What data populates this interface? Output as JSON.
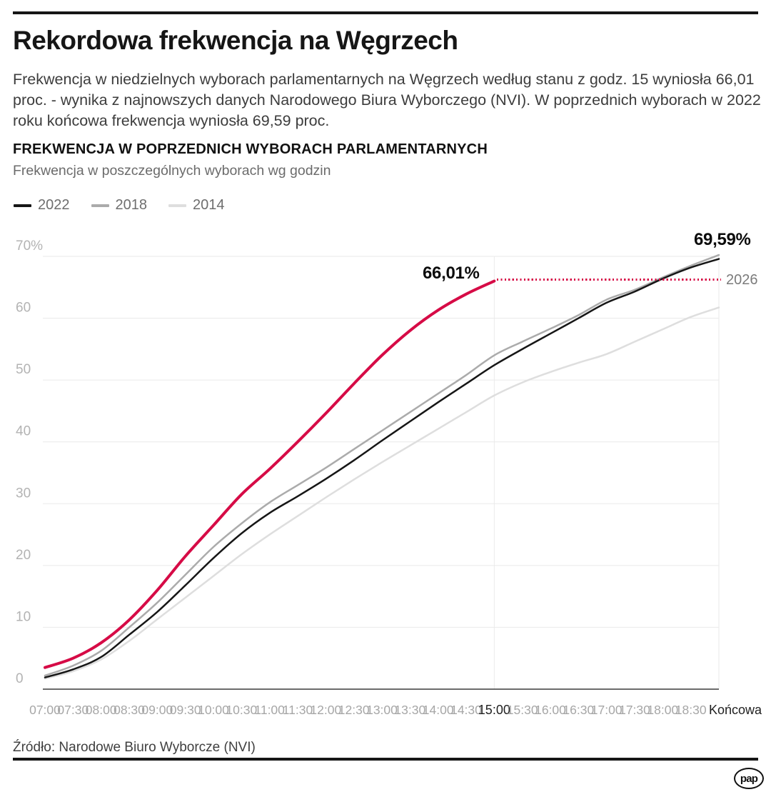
{
  "header": {
    "title": "Rekordowa frekwencja na Węgrzech",
    "lead": "Frekwencja w niedzielnych wyborach parlamentarnych na Węgrzech według stanu z godz. 15 wyniosła 66,01 proc. - wynika z najnowszych danych Narodowego Biura Wyborczego (NVI). W poprzednich wyborach w 2022 roku końcowa frekwencja wyniosła 69,59 proc."
  },
  "chart": {
    "heading": "FREKWENCJA W POPRZEDNICH WYBORACH PARLAMENTARNYCH",
    "subheading": "Frekwencja w poszczególnych wyborach wg godzin",
    "legend": [
      {
        "label": "2022",
        "color": "#161616"
      },
      {
        "label": "2018",
        "color": "#ababab"
      },
      {
        "label": "2014",
        "color": "#dedede"
      }
    ],
    "annotations": {
      "current_turnout": "66,01%",
      "final_turnout": "69,59%",
      "projection_year": "2026"
    }
  },
  "chart_data": {
    "type": "line",
    "title": "FREKWENCJA W POPRZEDNICH WYBORACH PARLAMENTARNYCH",
    "subtitle": "Frekwencja w poszczególnych wyborach wg godzin",
    "xlabel": "",
    "ylabel": "%",
    "ylim": [
      0,
      70
    ],
    "grid": true,
    "legend_position": "top-left",
    "x_labels": [
      "07:00",
      "07:30",
      "08:00",
      "08:30",
      "09:00",
      "09:30",
      "10:00",
      "10:30",
      "11:00",
      "11:30",
      "12:00",
      "12:30",
      "13:00",
      "13:30",
      "14:00",
      "14:30",
      "15:00",
      "15:30",
      "16:00",
      "16:30",
      "17:00",
      "17:30",
      "18:00",
      "18:30",
      "Końcowa"
    ],
    "emphasized_x_indexes": [
      16,
      24
    ],
    "y_labels": [
      "70%",
      "60",
      "50",
      "40",
      "30",
      "20",
      "10",
      "0"
    ],
    "series": [
      {
        "name": "2026",
        "color": "#d60b46",
        "values": [
          3.5,
          5.0,
          7.5,
          11.2,
          16.0,
          21.5,
          26.5,
          31.5,
          35.6,
          40.0,
          44.6,
          49.4,
          54.0,
          58.0,
          61.3,
          63.9,
          66.01,
          null,
          null,
          null,
          null,
          null,
          null,
          null,
          null
        ],
        "end_label": "66,01%"
      },
      {
        "name": "2022",
        "color": "#161616",
        "values": [
          1.9,
          3.2,
          5.2,
          8.8,
          12.5,
          16.8,
          21.2,
          25.2,
          28.5,
          31.2,
          34.0,
          37.0,
          40.2,
          43.3,
          46.4,
          49.4,
          52.4,
          55.0,
          57.5,
          60.0,
          62.5,
          64.3,
          66.4,
          68.2,
          69.59
        ],
        "end_label": "69,59%"
      },
      {
        "name": "2018",
        "color": "#ababab",
        "values": [
          2.2,
          3.8,
          6.2,
          10.0,
          14.0,
          18.5,
          23.0,
          26.8,
          30.2,
          33.0,
          35.8,
          38.8,
          41.8,
          44.8,
          47.8,
          50.8,
          54.0,
          56.2,
          58.3,
          60.5,
          63.0,
          64.6,
          66.6,
          68.5,
          70.22
        ],
        "end_label": ""
      },
      {
        "name": "2014",
        "color": "#dedede",
        "values": [
          1.7,
          2.9,
          4.8,
          7.8,
          11.3,
          14.8,
          18.3,
          21.8,
          25.0,
          28.0,
          31.0,
          33.9,
          36.7,
          39.4,
          42.1,
          44.8,
          47.5,
          49.6,
          51.3,
          52.8,
          54.2,
          56.2,
          58.2,
          60.2,
          61.73
        ],
        "end_label": ""
      }
    ]
  },
  "footer": {
    "source": "Źródło: Narodowe Biuro Wyborcze (NVI)",
    "logo": "pap"
  }
}
